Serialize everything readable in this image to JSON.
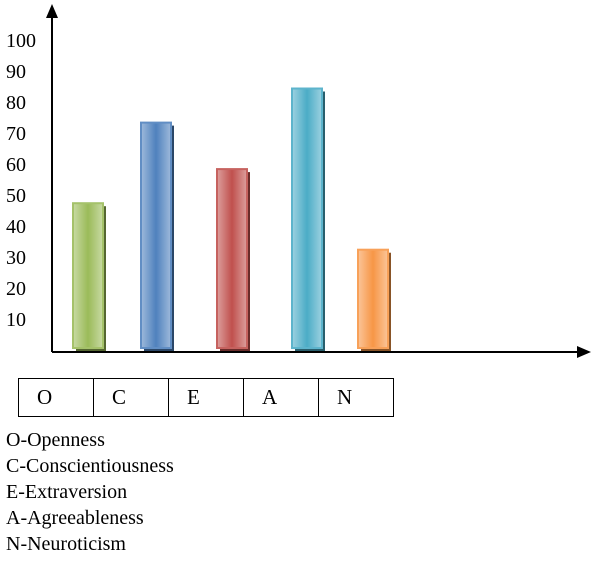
{
  "chart_data": {
    "type": "bar",
    "categories": [
      "O",
      "C",
      "E",
      "A",
      "N"
    ],
    "values": [
      48,
      74,
      59,
      85,
      33
    ],
    "colors": [
      "#9bbb59",
      "#4f81bd",
      "#c0504d",
      "#4bacc6",
      "#f79646"
    ],
    "yticks": [
      10,
      20,
      30,
      40,
      50,
      60,
      70,
      80,
      90,
      100
    ],
    "ylim": [
      0,
      100
    ],
    "grid": false,
    "title": "",
    "xlabel": "",
    "ylabel": ""
  },
  "legend": [
    "O-Openness",
    "C-Conscientiousness",
    "E-Extraversion",
    "A-Agreeableness",
    "N-Neuroticism"
  ]
}
